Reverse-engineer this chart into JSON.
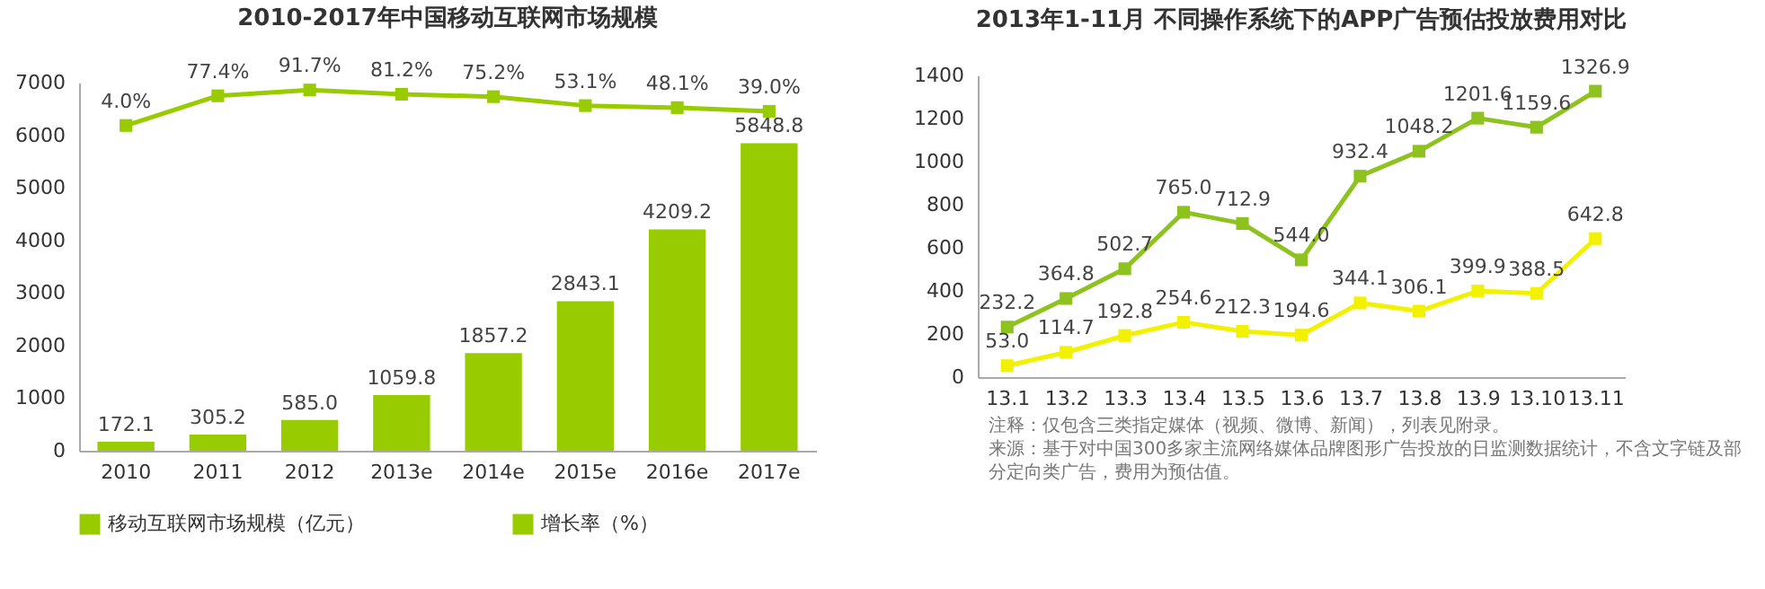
{
  "chart_data": [
    {
      "type": "bar",
      "title": "2010-2017年中国移动互联网市场规模",
      "categories": [
        "2010",
        "2011",
        "2012",
        "2013e",
        "2014e",
        "2015e",
        "2016e",
        "2017e"
      ],
      "series": [
        {
          "name": "移动互联网市场规模（亿元）",
          "color": "#99cc00",
          "values": [
            172.1,
            305.2,
            585.0,
            1059.8,
            1857.2,
            2843.1,
            4209.2,
            5848.8
          ],
          "value_labels": [
            "172.1",
            "305.2",
            "585.0",
            "1059.8",
            "1857.2",
            "2843.1",
            "4209.2",
            "5848.8"
          ]
        },
        {
          "name": "增长率（%）",
          "type": "line",
          "axis": "y2",
          "color": "#99cc00",
          "values": [
            4.0,
            77.4,
            91.7,
            81.2,
            75.2,
            53.1,
            48.1,
            39.0
          ],
          "value_labels": [
            "4.0%",
            "77.4%",
            "91.7%",
            "81.2%",
            "75.2%",
            "53.1%",
            "48.1%",
            "39.0%"
          ]
        }
      ],
      "ylim": [
        0,
        7000
      ],
      "yticks": [
        0,
        1000,
        2000,
        3000,
        4000,
        5000,
        6000,
        7000
      ],
      "y2lim": [
        -800,
        110
      ],
      "legend": "bottom",
      "marker": "square"
    },
    {
      "type": "line",
      "title": "2013年1-11月 不同操作系统下的APP广告预估投放费用对比",
      "categories": [
        "13.1",
        "13.2",
        "13.3",
        "13.4",
        "13.5",
        "13.6",
        "13.7",
        "13.8",
        "13.9",
        "13.10",
        "13.11"
      ],
      "series": [
        {
          "color": "#8dc21f",
          "values": [
            232.2,
            364.8,
            502.7,
            765.0,
            712.9,
            544.0,
            932.4,
            1048.2,
            1201.6,
            1159.6,
            1326.9
          ],
          "value_labels": [
            "232.2",
            "364.8",
            "502.7",
            "765.0",
            "712.9",
            "544.0",
            "932.4",
            "1048.2",
            "1201.6",
            "1159.6",
            "1326.9"
          ]
        },
        {
          "color": "#f2f200",
          "values": [
            53.0,
            114.7,
            192.8,
            254.6,
            212.3,
            194.6,
            344.1,
            306.1,
            399.9,
            388.5,
            642.8
          ],
          "value_labels": [
            "53.0",
            "114.7",
            "192.8",
            "254.6",
            "212.3",
            "194.6",
            "344.1",
            "306.1",
            "399.9",
            "388.5",
            "642.8"
          ]
        }
      ],
      "ylim": [
        0,
        1400
      ],
      "yticks": [
        0,
        200,
        400,
        600,
        800,
        1000,
        1200,
        1400
      ],
      "marker": "square",
      "annotations": [
        "注释：仅包含三类指定媒体（视频、微博、新闻），列表见附录。",
        "来源：基于对中国300多家主流网络媒体品牌图形广告投放的日监测数据统计，不含文字链及部分定向类广告，费用为预估值。"
      ]
    }
  ]
}
